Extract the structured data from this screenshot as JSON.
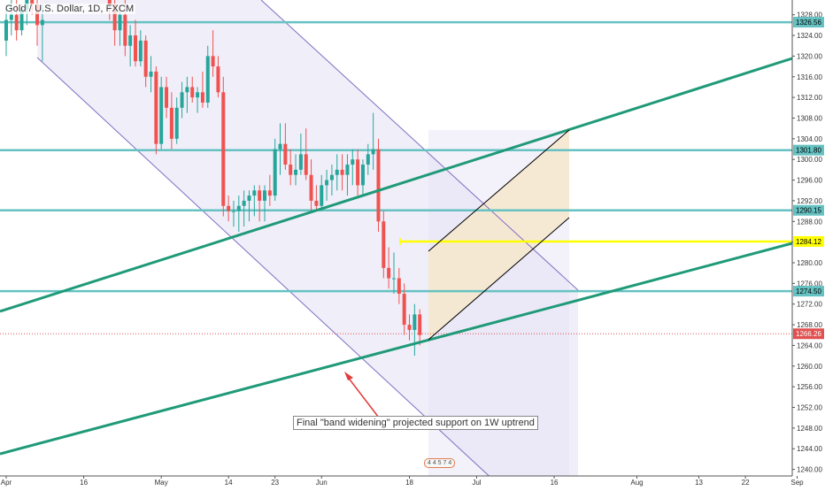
{
  "header": {
    "symbol_title": "Gold / U.S. Dollar, 1D, FXCM"
  },
  "annotation": {
    "text": "Final \"band widening\" projected support on 1W uptrend"
  },
  "events_badge": {
    "text": "4 4 5 7 4"
  },
  "colors": {
    "bull": "#26a69a",
    "bear": "#ef5350",
    "horizontal_level": "#66c2c2",
    "uptrend": "#1f9a78",
    "yellow_level": "#ffff00",
    "current_price": "#e05050",
    "channel_fill": "#e4e0f4",
    "channel_border": "#7e6fc2",
    "projection_fill": "#f6e7cc",
    "arrow": "#e23b3b"
  },
  "chart_data": {
    "type": "candlestick",
    "instrument": "Gold / U.S. Dollar",
    "timeframe": "1D",
    "source": "FXCM",
    "price_axis": {
      "min": 1238,
      "max": 1330,
      "ticks": [
        1328.0,
        1324.0,
        1320.0,
        1316.0,
        1312.0,
        1308.0,
        1304.0,
        1300.0,
        1296.0,
        1292.0,
        1288.0,
        1284.0,
        1280.0,
        1276.0,
        1272.0,
        1268.0,
        1264.0,
        1260.0,
        1256.0,
        1252.0,
        1248.0,
        1244.0,
        1240.0
      ]
    },
    "time_axis": {
      "ticks": [
        {
          "label": "Apr",
          "day": 0
        },
        {
          "label": "16",
          "day": 15
        },
        {
          "label": "May",
          "day": 30
        },
        {
          "label": "14",
          "day": 43
        },
        {
          "label": "23",
          "day": 52
        },
        {
          "label": "Jun",
          "day": 61
        },
        {
          "label": "18",
          "day": 78
        },
        {
          "label": "Jul",
          "day": 91
        },
        {
          "label": "16",
          "day": 106
        },
        {
          "label": "Aug",
          "day": 122
        },
        {
          "label": "13",
          "day": 134
        },
        {
          "label": "22",
          "day": 143
        },
        {
          "label": "Sep",
          "day": 153
        }
      ]
    },
    "candles": [
      {
        "day": 0,
        "o": 1323,
        "h": 1330,
        "l": 1320,
        "c": 1327
      },
      {
        "day": 1,
        "o": 1327,
        "h": 1331,
        "l": 1324,
        "c": 1328
      },
      {
        "day": 2,
        "o": 1328,
        "h": 1331,
        "l": 1323,
        "c": 1325
      },
      {
        "day": 3,
        "o": 1325,
        "h": 1330,
        "l": 1324,
        "c": 1329
      },
      {
        "day": 4,
        "o": 1329,
        "h": 1332,
        "l": 1326,
        "c": 1331
      },
      {
        "day": 5,
        "o": 1331,
        "h": 1333,
        "l": 1328,
        "c": 1330
      },
      {
        "day": 6,
        "o": 1330,
        "h": 1333,
        "l": 1322,
        "c": 1326
      },
      {
        "day": 7,
        "o": 1326,
        "h": 1330,
        "l": 1319,
        "c": 1327
      },
      {
        "day": 20,
        "o": 1331,
        "h": 1333,
        "l": 1327,
        "c": 1330
      },
      {
        "day": 21,
        "o": 1330,
        "h": 1333,
        "l": 1322,
        "c": 1325
      },
      {
        "day": 22,
        "o": 1325,
        "h": 1330,
        "l": 1322,
        "c": 1328
      },
      {
        "day": 23,
        "o": 1328,
        "h": 1331,
        "l": 1320,
        "c": 1322
      },
      {
        "day": 24,
        "o": 1322,
        "h": 1326,
        "l": 1318,
        "c": 1324
      },
      {
        "day": 25,
        "o": 1324,
        "h": 1327,
        "l": 1318,
        "c": 1319
      },
      {
        "day": 26,
        "o": 1319,
        "h": 1325,
        "l": 1318,
        "c": 1323
      },
      {
        "day": 27,
        "o": 1323,
        "h": 1324,
        "l": 1314,
        "c": 1316
      },
      {
        "day": 28,
        "o": 1316,
        "h": 1320,
        "l": 1313,
        "c": 1317
      },
      {
        "day": 29,
        "o": 1317,
        "h": 1318,
        "l": 1301,
        "c": 1303
      },
      {
        "day": 30,
        "o": 1303,
        "h": 1316,
        "l": 1302,
        "c": 1314
      },
      {
        "day": 31,
        "o": 1314,
        "h": 1316,
        "l": 1308,
        "c": 1310
      },
      {
        "day": 32,
        "o": 1310,
        "h": 1313,
        "l": 1302,
        "c": 1304
      },
      {
        "day": 33,
        "o": 1304,
        "h": 1312,
        "l": 1303,
        "c": 1310
      },
      {
        "day": 34,
        "o": 1310,
        "h": 1315,
        "l": 1308,
        "c": 1313
      },
      {
        "day": 35,
        "o": 1313,
        "h": 1316,
        "l": 1309,
        "c": 1314
      },
      {
        "day": 36,
        "o": 1314,
        "h": 1316,
        "l": 1311,
        "c": 1312
      },
      {
        "day": 37,
        "o": 1312,
        "h": 1314,
        "l": 1309,
        "c": 1313
      },
      {
        "day": 38,
        "o": 1313,
        "h": 1317,
        "l": 1310,
        "c": 1311
      },
      {
        "day": 39,
        "o": 1311,
        "h": 1322,
        "l": 1310,
        "c": 1320
      },
      {
        "day": 40,
        "o": 1320,
        "h": 1325,
        "l": 1316,
        "c": 1318
      },
      {
        "day": 41,
        "o": 1318,
        "h": 1320,
        "l": 1312,
        "c": 1313
      },
      {
        "day": 42,
        "o": 1313,
        "h": 1316,
        "l": 1289,
        "c": 1291
      },
      {
        "day": 43,
        "o": 1291,
        "h": 1293,
        "l": 1288,
        "c": 1290
      },
      {
        "day": 44,
        "o": 1290,
        "h": 1292,
        "l": 1287,
        "c": 1290
      },
      {
        "day": 45,
        "o": 1290,
        "h": 1293,
        "l": 1286,
        "c": 1291
      },
      {
        "day": 46,
        "o": 1291,
        "h": 1294,
        "l": 1287,
        "c": 1292
      },
      {
        "day": 47,
        "o": 1292,
        "h": 1294,
        "l": 1288,
        "c": 1293
      },
      {
        "day": 48,
        "o": 1293,
        "h": 1295,
        "l": 1289,
        "c": 1294
      },
      {
        "day": 49,
        "o": 1294,
        "h": 1295,
        "l": 1288,
        "c": 1292
      },
      {
        "day": 50,
        "o": 1292,
        "h": 1295,
        "l": 1288,
        "c": 1294
      },
      {
        "day": 51,
        "o": 1294,
        "h": 1297,
        "l": 1291,
        "c": 1293
      },
      {
        "day": 52,
        "o": 1293,
        "h": 1304,
        "l": 1292,
        "c": 1302
      },
      {
        "day": 53,
        "o": 1302,
        "h": 1307,
        "l": 1297,
        "c": 1303
      },
      {
        "day": 54,
        "o": 1303,
        "h": 1307,
        "l": 1298,
        "c": 1299
      },
      {
        "day": 55,
        "o": 1299,
        "h": 1302,
        "l": 1295,
        "c": 1297
      },
      {
        "day": 56,
        "o": 1297,
        "h": 1301,
        "l": 1295,
        "c": 1298
      },
      {
        "day": 57,
        "o": 1298,
        "h": 1305,
        "l": 1297,
        "c": 1301
      },
      {
        "day": 58,
        "o": 1301,
        "h": 1306,
        "l": 1296,
        "c": 1297
      },
      {
        "day": 59,
        "o": 1297,
        "h": 1300,
        "l": 1290,
        "c": 1292
      },
      {
        "day": 60,
        "o": 1292,
        "h": 1295,
        "l": 1290,
        "c": 1291
      },
      {
        "day": 61,
        "o": 1291,
        "h": 1297,
        "l": 1290,
        "c": 1295
      },
      {
        "day": 62,
        "o": 1295,
        "h": 1298,
        "l": 1292,
        "c": 1296
      },
      {
        "day": 63,
        "o": 1296,
        "h": 1299,
        "l": 1293,
        "c": 1297
      },
      {
        "day": 64,
        "o": 1297,
        "h": 1301,
        "l": 1294,
        "c": 1298
      },
      {
        "day": 65,
        "o": 1298,
        "h": 1301,
        "l": 1294,
        "c": 1297
      },
      {
        "day": 66,
        "o": 1297,
        "h": 1301,
        "l": 1293,
        "c": 1299
      },
      {
        "day": 67,
        "o": 1299,
        "h": 1302,
        "l": 1295,
        "c": 1300
      },
      {
        "day": 68,
        "o": 1300,
        "h": 1302,
        "l": 1293,
        "c": 1295
      },
      {
        "day": 69,
        "o": 1295,
        "h": 1300,
        "l": 1293,
        "c": 1299
      },
      {
        "day": 70,
        "o": 1299,
        "h": 1303,
        "l": 1297,
        "c": 1301
      },
      {
        "day": 71,
        "o": 1301,
        "h": 1309,
        "l": 1298,
        "c": 1302
      },
      {
        "day": 72,
        "o": 1302,
        "h": 1304,
        "l": 1286,
        "c": 1288
      },
      {
        "day": 73,
        "o": 1288,
        "h": 1290,
        "l": 1277,
        "c": 1279
      },
      {
        "day": 74,
        "o": 1279,
        "h": 1283,
        "l": 1275,
        "c": 1277
      },
      {
        "day": 75,
        "o": 1277,
        "h": 1282,
        "l": 1274,
        "c": 1277
      },
      {
        "day": 76,
        "o": 1277,
        "h": 1279,
        "l": 1272,
        "c": 1274
      },
      {
        "day": 77,
        "o": 1274,
        "h": 1276,
        "l": 1266,
        "c": 1268
      },
      {
        "day": 78,
        "o": 1268,
        "h": 1270,
        "l": 1265,
        "c": 1267
      },
      {
        "day": 79,
        "o": 1267,
        "h": 1272,
        "l": 1262,
        "c": 1270
      },
      {
        "day": 80,
        "o": 1270,
        "h": 1271,
        "l": 1264,
        "c": 1266
      }
    ],
    "levels": [
      {
        "price": 1326.56,
        "label": "1326.56"
      },
      {
        "price": 1301.8,
        "label": "1301.80"
      },
      {
        "price": 1290.15,
        "label": "1290.15"
      },
      {
        "price": 1284.12,
        "label": "1284.12"
      },
      {
        "price": 1274.5,
        "label": "1274.50"
      },
      {
        "price": 1266.26,
        "label": "1266.26"
      }
    ]
  }
}
